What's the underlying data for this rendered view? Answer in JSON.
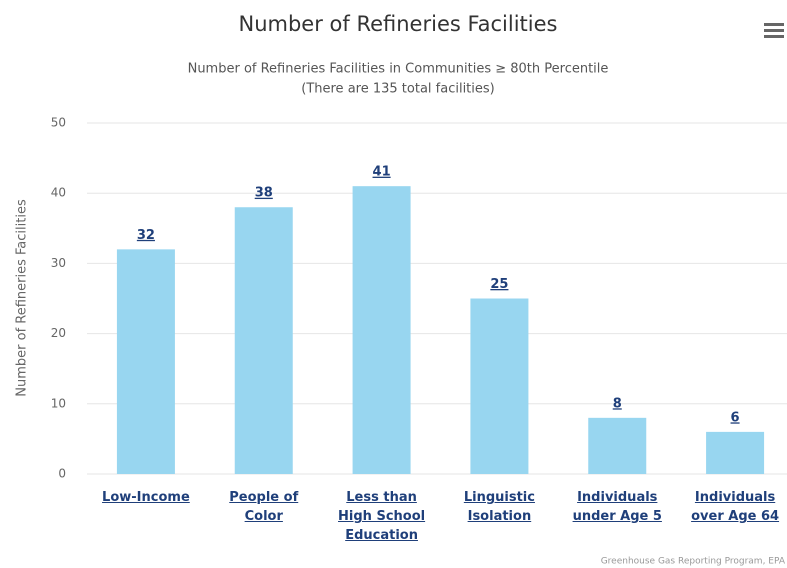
{
  "chart_data": {
    "type": "bar",
    "title": "Number of Refineries Facilities",
    "subtitle": [
      "Number of Refineries Facilities in Communities ≥ 80th Percentile",
      "(There are 135 total facilities)"
    ],
    "y_label": "Number of Refineries Facilities",
    "categories": [
      "Low-Income",
      "People of Color",
      "Less than High School Education",
      "Linguistic Isolation",
      "Individuals under Age 5",
      "Individuals over Age 64"
    ],
    "values": [
      32,
      38,
      41,
      25,
      8,
      6
    ],
    "color": "#98d6f0",
    "ylim": [
      0,
      50
    ],
    "yticks": [
      0,
      10,
      20,
      30,
      40,
      50
    ],
    "grid": true,
    "credits": "Greenhouse Gas Reporting Program, EPA"
  }
}
